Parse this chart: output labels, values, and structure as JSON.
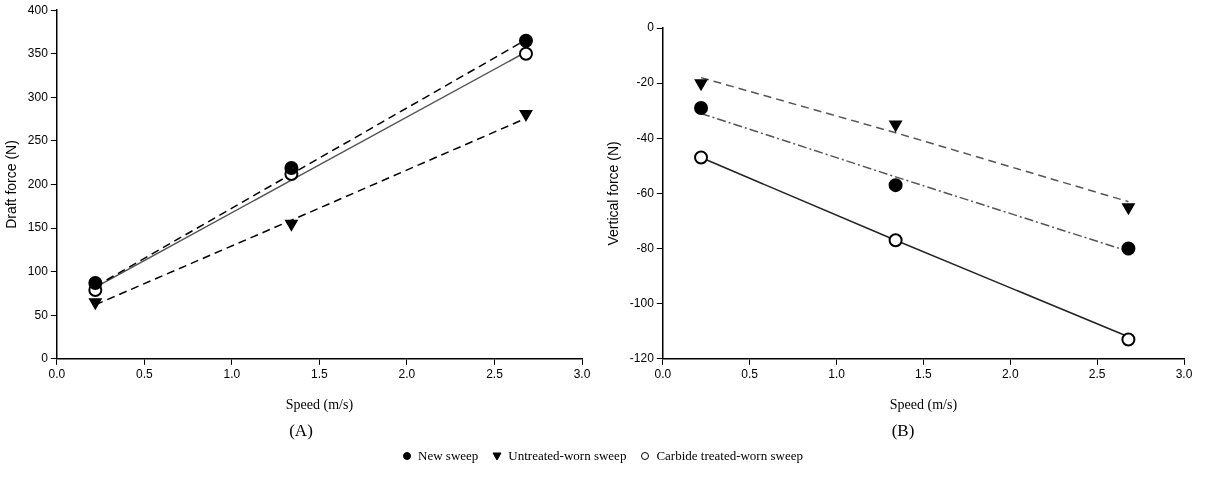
{
  "chart_data": [
    {
      "type": "scatter",
      "xlabel": "Speed (m/s)",
      "ylabel": "Draft force (N)",
      "annotations": [
        "(A)"
      ],
      "xlim": [
        0,
        3
      ],
      "xticks": [
        {
          "value": 0,
          "label": "0.0"
        },
        {
          "value": 0.5,
          "label": "0.5"
        },
        {
          "value": 1,
          "label": "1.0"
        },
        {
          "value": 1.5,
          "label": "1.5"
        },
        {
          "value": 2,
          "label": "2.0"
        },
        {
          "value": 2.5,
          "label": "2.5"
        },
        {
          "value": 3,
          "label": "3.0"
        }
      ],
      "ylim": [
        0,
        400
      ],
      "yticks": [
        0,
        50,
        100,
        150,
        200,
        250,
        300,
        350,
        400
      ],
      "grid": false,
      "legend": "bottom",
      "x": [
        0.22,
        1.34,
        2.68
      ],
      "series": [
        {
          "name": "New sweep",
          "color": "#000000",
          "marker": "circle",
          "values": [
            87,
            219,
            365
          ]
        },
        {
          "name": "Untreated-worn sweep",
          "color": "#000000",
          "marker": "triangle",
          "values": [
            65,
            155,
            281
          ]
        },
        {
          "name": "Carbide treated-worn sweep",
          "color": "#ffffff",
          "marker": "circle",
          "values": [
            79,
            212,
            350
          ]
        },
        {
          "type": "line",
          "color": "#000000",
          "line_style": "dashed",
          "marker": "none",
          "values": [
            83,
            212,
            366
          ]
        },
        {
          "type": "line",
          "color": "#000000",
          "line_style": "dashed",
          "marker": "none",
          "values": [
            62,
            159,
            276
          ]
        },
        {
          "type": "line",
          "color": "#555555",
          "line_style": "solid",
          "marker": "none",
          "values": [
            82,
            205,
            352
          ]
        }
      ]
    },
    {
      "type": "scatter",
      "xlabel": "Speed (m/s)",
      "ylabel": "Vertical force (N)",
      "annotations": [
        "(B)"
      ],
      "xlim": [
        0,
        3
      ],
      "xticks": [
        {
          "value": 0,
          "label": "0.0"
        },
        {
          "value": 0.5,
          "label": "0.5"
        },
        {
          "value": 1,
          "label": "1.0"
        },
        {
          "value": 1.5,
          "label": "1.5"
        },
        {
          "value": 2,
          "label": "2.0"
        },
        {
          "value": 2.5,
          "label": "2.5"
        },
        {
          "value": 3,
          "label": "3.0"
        }
      ],
      "ylim": [
        -120,
        0
      ],
      "yticks": [
        -120,
        -100,
        -80,
        -60,
        -40,
        -20,
        0
      ],
      "grid": false,
      "x": [
        0.22,
        1.34,
        2.68
      ],
      "series": [
        {
          "color": "#000000",
          "marker": "circle",
          "values": [
            -29,
            -57,
            -80
          ]
        },
        {
          "color": "#000000",
          "marker": "triangle",
          "values": [
            -20,
            -35,
            -65
          ]
        },
        {
          "color": "#ffffff",
          "marker": "circle",
          "values": [
            -47,
            -77,
            -113
          ]
        },
        {
          "type": "line",
          "color": "#555555",
          "line_style": "dashdot",
          "marker": "none",
          "values": [
            -31,
            -54,
            -81
          ]
        },
        {
          "type": "line",
          "color": "#555555",
          "line_style": "dashed",
          "marker": "none",
          "values": [
            -18,
            -38,
            -63
          ]
        },
        {
          "type": "line",
          "color": "#222222",
          "line_style": "solid",
          "marker": "none",
          "values": [
            -47,
            -77,
            -112
          ]
        }
      ]
    }
  ]
}
